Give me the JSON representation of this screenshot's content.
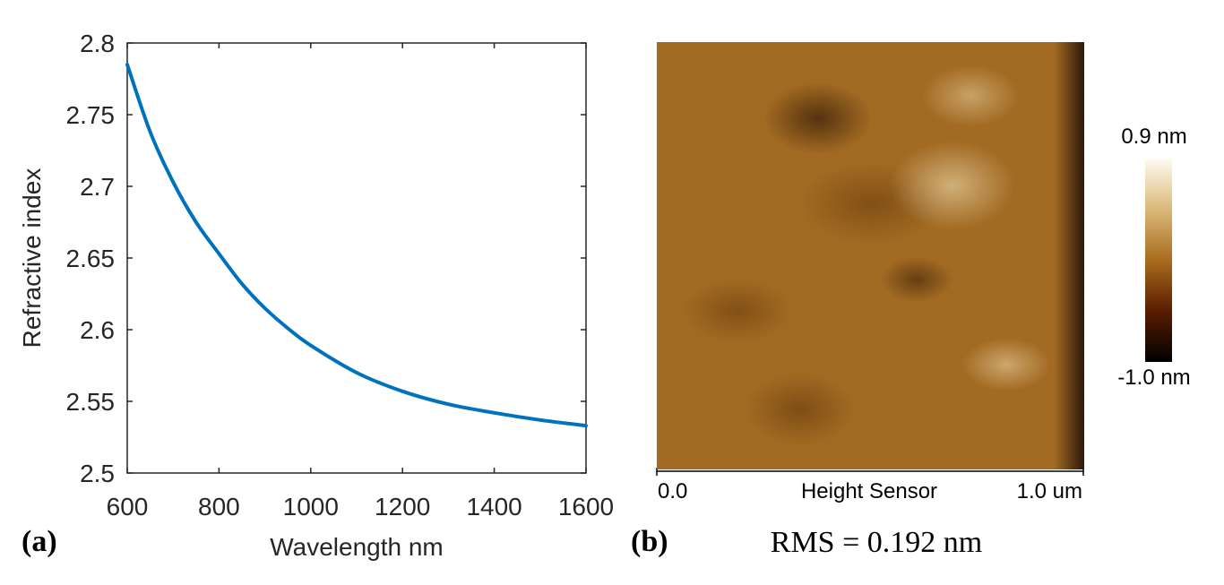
{
  "panel_a": {
    "label": "(a)"
  },
  "panel_b": {
    "label": "(b)",
    "x_start_label": "0.0",
    "x_title": "Height Sensor",
    "x_end_label": "1.0 um",
    "colorbar_max": "0.9 nm",
    "colorbar_min": "-1.0 nm",
    "rms_text": "RMS = 0.192 nm",
    "colors": {
      "high": "#fffaf0",
      "mid": "#a86b1e",
      "low": "#000000"
    }
  },
  "chart_data": [
    {
      "type": "line",
      "title": "",
      "xlabel": "Wavelength nm",
      "ylabel": "Refractive index",
      "xlim": [
        600,
        1600
      ],
      "ylim": [
        2.5,
        2.8
      ],
      "x_ticks": [
        600,
        800,
        1000,
        1200,
        1400,
        1600
      ],
      "x_tick_labels": [
        "600",
        "800",
        "1000",
        "1200",
        "1400",
        "1600"
      ],
      "y_ticks": [
        2.5,
        2.55,
        2.6,
        2.65,
        2.7,
        2.75,
        2.8
      ],
      "y_tick_labels": [
        "2.5",
        "2.55",
        "2.6",
        "2.65",
        "2.7",
        "2.75",
        "2.8"
      ],
      "grid": false,
      "series": [
        {
          "name": "Refractive index",
          "color": "#0072bd",
          "x": [
            600,
            650,
            700,
            750,
            800,
            850,
            900,
            950,
            1000,
            1100,
            1200,
            1300,
            1400,
            1500,
            1600
          ],
          "y": [
            2.785,
            2.738,
            2.703,
            2.675,
            2.653,
            2.632,
            2.615,
            2.601,
            2.589,
            2.57,
            2.557,
            2.548,
            2.542,
            2.537,
            2.533
          ]
        }
      ]
    },
    {
      "type": "heatmap",
      "title": "",
      "xlabel": "Height Sensor",
      "x_range_labels": [
        "0.0",
        "1.0 um"
      ],
      "colorbar_range_nm": [
        -1.0,
        0.9
      ],
      "note": "AFM height image"
    }
  ]
}
